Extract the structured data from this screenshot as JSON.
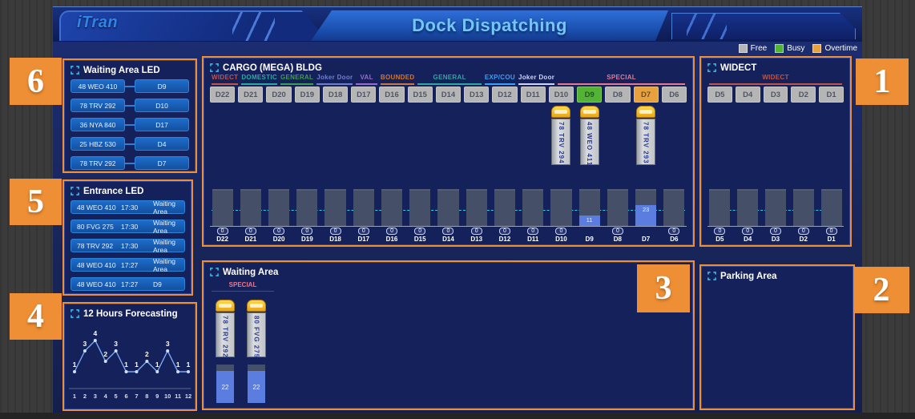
{
  "header": {
    "logo": "iTran",
    "title": "Dock Dispatching"
  },
  "legend": {
    "items": [
      {
        "label": "Free",
        "color": "#b5b5b5"
      },
      {
        "label": "Busy",
        "color": "#53b332"
      },
      {
        "label": "Overtime",
        "color": "#e8a23d"
      }
    ]
  },
  "colors": {
    "free": "#b5b5b5",
    "busy": "#53b332",
    "overtime": "#e8a23d",
    "queue_bar": "#5b7de0",
    "threshold": "#3ecbe0",
    "annotation": "#ee8f35"
  },
  "badges": {
    "b1": "1",
    "b2": "2",
    "b3": "3",
    "b4": "4",
    "b5": "5",
    "b6": "6"
  },
  "panels": {
    "waiting_area_led": {
      "title": "Waiting Area LED",
      "rows": [
        {
          "plate": "48 WEO 410",
          "dock": "D9"
        },
        {
          "plate": "78 TRV 292",
          "dock": "D10"
        },
        {
          "plate": "36 NYA 840",
          "dock": "D17"
        },
        {
          "plate": "25 HBZ 530",
          "dock": "D4"
        },
        {
          "plate": "78 TRV 292",
          "dock": "D7"
        }
      ]
    },
    "entrance_led": {
      "title": "Entrance LED",
      "rows": [
        {
          "plate": "48 WEO 410",
          "time": "17:30",
          "location": "Waiting Area"
        },
        {
          "plate": "80 FVG 275",
          "time": "17:30",
          "location": "Waiting Area"
        },
        {
          "plate": "78 TRV 292",
          "time": "17:30",
          "location": "Waiting Area"
        },
        {
          "plate": "48 WEO 410",
          "time": "17:27",
          "location": "Waiting Area"
        },
        {
          "plate": "48 WEO 410",
          "time": "17:27",
          "location": "D9"
        }
      ]
    },
    "forecasting": {
      "title": "12 Hours Forecasting"
    },
    "cargo": {
      "title": "CARGO (MEGA) BLDG",
      "groups": [
        {
          "label": "WIDECT",
          "span": 1,
          "color": "#c0544a"
        },
        {
          "label": "DOMESTIC",
          "span": 1,
          "color": "#2fa8a0"
        },
        {
          "label": "GENERAL",
          "span": 1,
          "color": "#3f9e4f"
        },
        {
          "label": "Joker Door",
          "span": 1,
          "color": "#6f7fd0"
        },
        {
          "label": "VAL",
          "span": 1,
          "color": "#9a6ad0"
        },
        {
          "label": "BOUNDED",
          "span": 1,
          "color": "#c87840"
        },
        {
          "label": "GENERAL",
          "span": 3,
          "color": "#2fa8a0"
        },
        {
          "label": "EXP/COU",
          "span": 1,
          "color": "#38a0f8"
        },
        {
          "label": "Joker Door",
          "span": 1,
          "color": "#cfd4ff"
        },
        {
          "label": "SPECIAL",
          "span": 6,
          "color": "#e87890"
        }
      ],
      "docks": [
        {
          "id": "D22",
          "state": "free",
          "queue": 0
        },
        {
          "id": "D21",
          "state": "free",
          "queue": 0
        },
        {
          "id": "D20",
          "state": "free",
          "queue": 0
        },
        {
          "id": "D19",
          "state": "free",
          "queue": 0
        },
        {
          "id": "D18",
          "state": "free",
          "queue": 0
        },
        {
          "id": "D17",
          "state": "free",
          "queue": 0
        },
        {
          "id": "D16",
          "state": "free",
          "queue": 0
        },
        {
          "id": "D15",
          "state": "free",
          "queue": 0
        },
        {
          "id": "D14",
          "state": "free",
          "queue": 0
        },
        {
          "id": "D13",
          "state": "free",
          "queue": 0
        },
        {
          "id": "D12",
          "state": "free",
          "queue": 0
        },
        {
          "id": "D11",
          "state": "free",
          "queue": 0
        },
        {
          "id": "D10",
          "state": "free",
          "queue": 0,
          "truck": "78 TRV 294"
        },
        {
          "id": "D9",
          "state": "busy",
          "queue": 11,
          "truck": "48 WEO 411"
        },
        {
          "id": "D8",
          "state": "free",
          "queue": 0
        },
        {
          "id": "D7",
          "state": "overtime",
          "queue": 23,
          "truck": "78 TRV 293"
        },
        {
          "id": "D6",
          "state": "free",
          "queue": 0
        }
      ]
    },
    "widect": {
      "title": "WIDECT",
      "groups": [
        {
          "label": "WIDECT",
          "span": 5,
          "color": "#c0544a"
        }
      ],
      "docks": [
        {
          "id": "D5",
          "state": "free",
          "queue": 0
        },
        {
          "id": "D4",
          "state": "free",
          "queue": 0
        },
        {
          "id": "D3",
          "state": "free",
          "queue": 0
        },
        {
          "id": "D2",
          "state": "free",
          "queue": 0
        },
        {
          "id": "D1",
          "state": "free",
          "queue": 0
        }
      ]
    },
    "waiting_area": {
      "title": "Waiting Area",
      "category": {
        "label": "SPECIAL",
        "color": "#e87890"
      },
      "trucks": [
        {
          "plate": "78 TRV 292",
          "queue": 22
        },
        {
          "plate": "80 FVG 275",
          "queue": 22
        }
      ]
    },
    "parking_area": {
      "title": "Parking Area"
    }
  },
  "chart_data": {
    "type": "line",
    "title": "12 Hours Forecasting",
    "x": [
      1,
      2,
      3,
      4,
      5,
      6,
      7,
      8,
      9,
      10,
      11,
      12
    ],
    "values": [
      1,
      3,
      4,
      2,
      3,
      1,
      1,
      2,
      1,
      3,
      1,
      1
    ],
    "xlabel": "",
    "ylabel": "",
    "ylim": [
      0,
      5
    ],
    "grid": false,
    "legend_position": "none"
  }
}
